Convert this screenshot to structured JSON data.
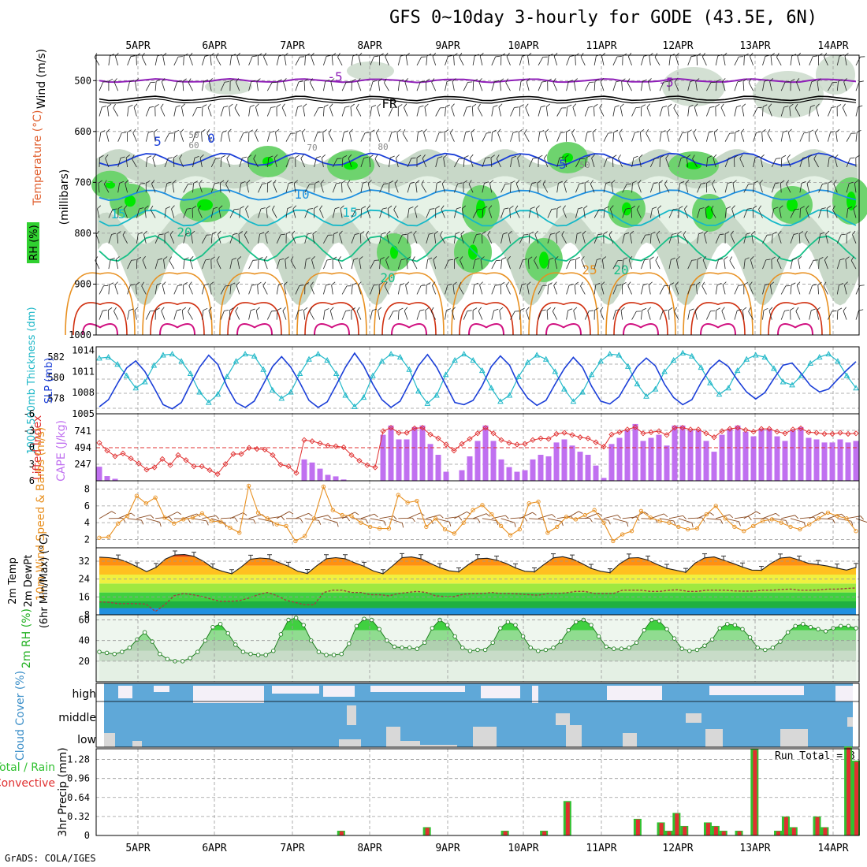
{
  "title": "GFS 0~10day 3-hourly for GODE (43.5E, 6N)",
  "footer": "GrADS: COLA/IGES",
  "run_total_label": "Run Total = 8",
  "date_labels": [
    "5APR",
    "6APR",
    "7APR",
    "8APR",
    "9APR",
    "10APR",
    "11APR",
    "12APR",
    "13APR",
    "14APR"
  ],
  "chart_data": [
    {
      "type": "heatmap",
      "panel": "upper-air",
      "ylabel": "(millibars)",
      "y_title_parts": [
        "RH (%)",
        "Temperature (°C)",
        "Wind (m/s)"
      ],
      "yticks": [
        500,
        600,
        700,
        800,
        900,
        1000
      ],
      "ylim": [
        1000,
        450
      ],
      "temperature_contour_labels": [
        "-5",
        "FR",
        "0",
        "5",
        "10",
        "15",
        "20",
        "25"
      ],
      "rh_contour_labels": [
        "50",
        "60",
        "70",
        "80"
      ],
      "rh_colors": [
        "#ffffff",
        "#e6f2e6",
        "#c8d8c8",
        "#6ed36e",
        "#00e800"
      ],
      "temperature_colors": {
        "-5": "#8f1fb8",
        "FR": "#000000",
        "0": "#1b3fd8",
        "5": "#1b3fd8",
        "10": "#1e90e0",
        "15": "#14b8c8",
        "20": "#18c088",
        "25": "#e89020",
        "30": "#d03010",
        "35": "#d01080"
      }
    },
    {
      "type": "line",
      "panel": "thickness-slp",
      "y_title_parts": [
        "1000-500mb Thickness (dm)",
        "SLP (mb)"
      ],
      "left_yticks": [
        578,
        580,
        582
      ],
      "right_yticks": [
        1005,
        1008,
        1011,
        1014
      ],
      "series": [
        {
          "name": "1000-500mb Thickness (dm)",
          "color": "#20b8c8",
          "values": [
            581.9,
            582.0,
            581.3,
            580.2,
            579.0,
            579.6,
            581.2,
            582.2,
            582.3,
            581.6,
            580.4,
            578.6,
            577.6,
            578.4,
            580.1,
            581.6,
            582.3,
            582.1,
            580.8,
            578.8,
            578.0,
            578.6,
            580.4,
            581.8,
            582.3,
            581.7,
            580.4,
            578.3,
            577.2,
            578.1,
            580.2,
            581.6,
            582.3,
            582.0,
            580.8,
            578.7,
            577.5,
            578.3,
            580.3,
            581.7,
            582.3,
            581.7,
            580.7,
            579.0,
            577.7,
            578.3,
            580.1,
            581.5,
            582.2,
            581.8,
            580.6,
            578.9,
            577.7,
            578.6,
            580.3,
            581.6,
            582.3,
            582.2,
            581.1,
            579.4,
            578.2,
            578.9,
            580.6,
            581.7,
            582.4,
            582.1,
            581.0,
            579.5,
            578.4,
            579.0,
            580.7,
            581.8,
            582.2,
            582.0,
            580.9,
            579.6,
            579.3,
            580.2,
            581.4,
            582.0,
            582.3,
            581.6,
            580.2,
            579.0
          ]
        },
        {
          "name": "SLP (mb)",
          "color": "#1b3fd8",
          "values": [
            1006.0,
            1007.0,
            1009.3,
            1011.5,
            1012.5,
            1011.0,
            1008.7,
            1006.3,
            1005.7,
            1006.6,
            1009.2,
            1011.6,
            1013.3,
            1012.0,
            1008.9,
            1006.6,
            1005.9,
            1006.8,
            1009.2,
            1011.7,
            1013.1,
            1011.6,
            1009.4,
            1006.9,
            1005.9,
            1006.7,
            1009.1,
            1011.6,
            1013.6,
            1011.8,
            1009.2,
            1007.0,
            1005.9,
            1006.8,
            1009.3,
            1011.8,
            1013.4,
            1011.6,
            1009.1,
            1006.6,
            1006.3,
            1006.9,
            1009.0,
            1011.7,
            1013.2,
            1011.9,
            1009.1,
            1007.2,
            1006.2,
            1006.9,
            1009.2,
            1011.4,
            1013.0,
            1011.6,
            1008.9,
            1006.8,
            1006.4,
            1007.4,
            1009.6,
            1011.7,
            1012.9,
            1011.8,
            1009.2,
            1007.3,
            1006.3,
            1007.0,
            1009.4,
            1011.4,
            1012.6,
            1011.7,
            1009.8,
            1008.1,
            1007.1,
            1008.0,
            1010.0,
            1011.9,
            1012.2,
            1010.7,
            1009.0,
            1008.1,
            1008.5,
            1009.9,
            1011.2,
            1012.4
          ]
        }
      ]
    },
    {
      "type": "bar",
      "panel": "cape-li",
      "y_title_parts": [
        "Lifted Index",
        "CAPE (J/kg)"
      ],
      "left_yticks": [
        -6,
        -3,
        0,
        3,
        6
      ],
      "right_yticks": [
        247,
        494,
        741
      ],
      "series": [
        {
          "name": "CAPE (J/kg)",
          "color": "#c070f0",
          "values": [
            210,
            70,
            30,
            0,
            0,
            0,
            0,
            0,
            0,
            0,
            0,
            0,
            0,
            0,
            0,
            0,
            0,
            0,
            0,
            0,
            0,
            0,
            0,
            0,
            0,
            0,
            0,
            0,
            0,
            0,
            0,
            0,
            0,
            0,
            0,
            0,
            0,
            0,
            0,
            0,
            0,
            0,
            0,
            0,
            0,
            0,
            0,
            0,
            0,
            0,
            0,
            0,
            0,
            0,
            0,
            0,
            0,
            0,
            0,
            0,
            0,
            0,
            0,
            0,
            0,
            0,
            0,
            0,
            0,
            0,
            0,
            0,
            0,
            0,
            0,
            0,
            0,
            0,
            0,
            0,
            0,
            0,
            0,
            0
          ]
        },
        {
          "name": "Lifted Index",
          "color": "#e03030",
          "values": [
            -0.8,
            0.6,
            1.6,
            1.1,
            2.0,
            2.9,
            4.0,
            3.6,
            2.1,
            3.2,
            1.4,
            2.3,
            3.4,
            3.4,
            4.1,
            4.8,
            3.0,
            1.2,
            1.2,
            0.1,
            0.3,
            0.4,
            1.4,
            3.1,
            3.4,
            4.6,
            -1.3,
            -1.1,
            -0.7,
            -0.3,
            -0.2,
            0.0,
            1.4,
            2.4,
            3.2,
            3.6,
            -2.9,
            -3.5,
            -2.6,
            -2.6,
            -3.4,
            -3.5,
            -2.3,
            -1.6,
            -0.5,
            0.6,
            -0.6,
            -1.5,
            -2.5,
            -3.5,
            -2.5,
            -1.3,
            -0.8,
            -0.5,
            -0.6,
            -1.3,
            -1.6,
            -1.5,
            -2.4,
            -2.6,
            -2.2,
            -1.8,
            -1.6,
            -0.9,
            -0.1,
            -2.3,
            -2.7,
            -3.2,
            -3.6,
            -2.5,
            -2.7,
            -2.9,
            -2.2,
            -3.5,
            -3.5,
            -3.2,
            -3.2,
            -2.5,
            -1.8,
            -2.9,
            -3.3,
            -3.5,
            -3.1,
            -2.8,
            -3.3,
            -3.3,
            -2.8,
            -2.5,
            -3.2,
            -3.4,
            -2.7,
            -2.6,
            -2.4,
            -2.4,
            -2.6,
            -2.4,
            -2.5
          ]
        }
      ]
    },
    {
      "type": "line",
      "panel": "wind10m",
      "y_title_parts": [
        "10m Wind Speed & Barbs (m/s)"
      ],
      "yticks": [
        2,
        4,
        6,
        8
      ],
      "ylim": [
        1,
        9
      ],
      "series": [
        {
          "name": "10m Wind Speed",
          "color": "#e89020",
          "values": [
            2.2,
            2.3,
            3.9,
            4.8,
            7.2,
            6.3,
            7.0,
            4.6,
            3.9,
            4.4,
            4.6,
            5.1,
            4.2,
            4.1,
            3.4,
            2.8,
            8.4,
            5.2,
            4.5,
            3.8,
            3.6,
            1.8,
            2.4,
            4.5,
            8.3,
            5.5,
            4.9,
            4.8,
            4.0,
            3.5,
            3.3,
            3.3,
            7.3,
            6.4,
            6.6,
            3.5,
            4.5,
            3.2,
            2.7,
            4.0,
            5.5,
            6.1,
            5.0,
            3.6,
            2.5,
            3.2,
            6.3,
            6.5,
            2.8,
            3.5,
            4.7,
            4.4,
            4.9,
            5.5,
            4.0,
            1.8,
            2.6,
            3.0,
            5.4,
            4.6,
            4.2,
            4.0,
            3.5,
            3.2,
            3.3,
            5.0,
            6.0,
            4.5,
            3.5,
            3.0,
            3.6,
            4.2,
            4.4,
            4.0,
            3.5,
            3.2,
            3.8,
            4.5,
            5.2,
            4.8,
            4.5,
            3.0
          ]
        }
      ]
    },
    {
      "type": "area",
      "panel": "temp2m",
      "y_title_parts": [
        "2m Temp",
        "2m DewPt",
        "(6hr Min/Max) (°C)"
      ],
      "yticks": [
        8,
        16,
        24,
        32
      ],
      "ylim": [
        8,
        38
      ],
      "series": [
        {
          "name": "2m Temp",
          "color": "#e04010",
          "values": [
            33.8,
            33.6,
            33.0,
            31.5,
            29.5,
            27.3,
            29.2,
            33.0,
            34.8,
            35.0,
            34.2,
            32.0,
            29.0,
            27.5,
            26.4,
            29.4,
            32.9,
            33.4,
            33.1,
            31.4,
            29.7,
            27.5,
            26.5,
            30.0,
            33.1,
            33.6,
            33.1,
            31.3,
            29.7,
            27.6,
            26.4,
            29.9,
            33.6,
            33.9,
            33.1,
            31.0,
            29.1,
            27.7,
            27.2,
            30.4,
            33.1,
            33.3,
            32.5,
            31.0,
            29.0,
            27.5,
            27.2,
            30.5,
            33.5,
            34.0,
            33.0,
            31.0,
            28.8,
            27.5,
            26.8,
            30.8,
            33.4,
            33.6,
            32.5,
            30.5,
            28.8,
            27.9,
            27.0,
            31.2,
            33.5,
            33.9,
            32.5,
            31.0,
            29.4,
            28.0,
            27.9,
            31.0,
            33.4,
            33.8,
            32.5,
            31.0,
            30.5,
            29.8,
            28.9,
            28.0,
            29.2
          ]
        },
        {
          "name": "2m DewPt",
          "color": "#a04040",
          "values": [
            13.8,
            13.6,
            13.0,
            13.0,
            13.0,
            12.8,
            9.5,
            12.5,
            16.5,
            17.5,
            17.0,
            16.2,
            15.0,
            14.0,
            14.0,
            14.3,
            15.5,
            17.0,
            18.0,
            16.6,
            14.5,
            13.5,
            12.5,
            12.5,
            18.0,
            19.0,
            19.0,
            18.0,
            18.0,
            17.0,
            17.0,
            16.5,
            17.5,
            18.0,
            18.5,
            18.0,
            16.5,
            16.2,
            16.2,
            17.2,
            17.5,
            17.5,
            18.0,
            17.5,
            17.5,
            17.3,
            17.0,
            16.8,
            17.5,
            17.5,
            17.8,
            18.5,
            18.5,
            17.5,
            17.5,
            17.5,
            19.0,
            19.0,
            19.0,
            18.5,
            18.5,
            19.0,
            19.2,
            18.5,
            18.5,
            19.0,
            19.0,
            19.0,
            18.7,
            18.6,
            18.6,
            19.0,
            19.0,
            19.3,
            19.5,
            19.0,
            19.0,
            19.1,
            19.5,
            19.5,
            19.8,
            20.0
          ]
        }
      ]
    },
    {
      "type": "area",
      "panel": "rh2m",
      "y_title_parts": [
        "2m RH (%)"
      ],
      "yticks": [
        20,
        40,
        60
      ],
      "ylim": [
        0,
        65
      ],
      "series": [
        {
          "name": "2m RH",
          "color": "#20b020",
          "values": [
            29,
            28,
            27,
            29,
            33,
            41,
            48,
            39,
            27,
            22,
            20,
            20,
            23,
            29,
            40,
            53,
            56,
            47,
            36,
            29,
            27,
            26,
            26,
            30,
            46,
            60,
            62,
            55,
            40,
            29,
            26,
            26,
            27,
            37,
            54,
            61,
            60,
            51,
            40,
            34,
            33,
            33,
            32,
            38,
            52,
            60,
            55,
            44,
            33,
            30,
            31,
            31,
            38,
            52,
            58,
            55,
            44,
            33,
            30,
            31,
            33,
            39,
            50,
            58,
            60,
            55,
            44,
            34,
            32,
            32,
            33,
            38,
            50,
            60,
            59,
            51,
            42,
            32,
            30,
            31,
            35,
            41,
            52,
            56,
            55,
            51,
            43,
            33,
            31,
            33,
            39,
            48,
            54,
            56,
            53,
            51,
            49,
            52,
            54,
            54,
            52
          ]
        }
      ]
    },
    {
      "type": "area",
      "panel": "cloud-cover",
      "y_title_parts": [
        "Cloud Cover (%)"
      ],
      "ytick_labels": [
        "high",
        "middle",
        "low"
      ],
      "colors": {
        "cloud": "#5fa8d8",
        "clear": "#f4f0f8",
        "low_gap": "#d8d8d8"
      }
    },
    {
      "type": "bar",
      "panel": "precip",
      "y_title_parts": [
        "Total / Rain",
        "Convective",
        "3hr Precip (mm)"
      ],
      "yticks": [
        0,
        0.32,
        0.64,
        0.96,
        1.28
      ],
      "ylim": [
        0,
        1.46
      ],
      "series": [
        {
          "name": "Total / Rain",
          "color": "#30c030",
          "values": [
            0,
            0,
            0,
            0,
            0,
            0,
            0,
            0,
            0,
            0,
            0,
            0,
            0,
            0,
            0,
            0,
            0,
            0,
            0,
            0,
            0,
            0,
            0,
            0,
            0,
            0,
            0,
            0,
            0,
            0,
            0,
            0.08,
            0,
            0,
            0,
            0,
            0,
            0,
            0,
            0,
            0,
            0,
            0.14,
            0,
            0,
            0,
            0,
            0,
            0,
            0,
            0,
            0,
            0.08,
            0,
            0,
            0,
            0,
            0.08,
            0,
            0,
            0.58,
            0,
            0,
            0,
            0,
            0,
            0,
            0,
            0,
            0.28,
            0,
            0,
            0.22,
            0.08,
            0.38,
            0.16,
            0,
            0,
            0.22,
            0.16,
            0.08,
            0,
            0.08,
            0,
            1.46,
            0,
            0,
            0.08,
            0.32,
            0.14,
            0,
            0,
            0.32,
            0.14,
            0,
            0,
            1.5,
            1.26
          ]
        },
        {
          "name": "Convective",
          "color": "#e03030",
          "values": [
            0,
            0,
            0,
            0,
            0,
            0,
            0,
            0,
            0,
            0,
            0,
            0,
            0,
            0,
            0,
            0,
            0,
            0,
            0,
            0,
            0,
            0,
            0,
            0,
            0,
            0,
            0,
            0,
            0,
            0,
            0,
            0.07,
            0,
            0,
            0,
            0,
            0,
            0,
            0,
            0,
            0,
            0,
            0.13,
            0,
            0,
            0,
            0,
            0,
            0,
            0,
            0,
            0,
            0.07,
            0,
            0,
            0,
            0,
            0.07,
            0,
            0,
            0.56,
            0,
            0,
            0,
            0,
            0,
            0,
            0,
            0,
            0.27,
            0,
            0,
            0.21,
            0.07,
            0.37,
            0.15,
            0,
            0,
            0.21,
            0.15,
            0.07,
            0,
            0.07,
            0,
            1.44,
            0,
            0,
            0.07,
            0.31,
            0.13,
            0,
            0,
            0.31,
            0.13,
            0,
            0,
            1.48,
            1.24
          ]
        }
      ]
    }
  ]
}
